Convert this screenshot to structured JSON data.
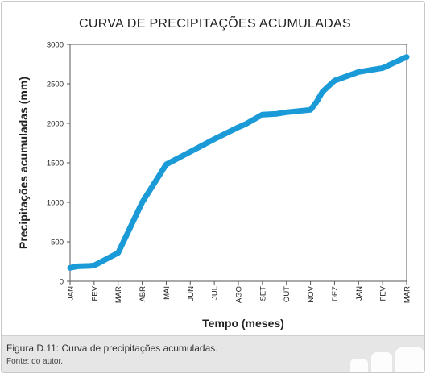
{
  "figure": {
    "caption": "Figura D.11: Curva de precipitações acumuladas.",
    "source": "Fonte: do autor."
  },
  "chart_data": {
    "type": "line",
    "title": "CURVA DE PRECIPITAÇÕES ACUMULADAS",
    "xlabel": "Tempo (meses)",
    "ylabel": "Precipitações acumuladas (mm)",
    "ylim": [
      0,
      3000
    ],
    "yticks": [
      0,
      500,
      1000,
      1500,
      2000,
      2500,
      3000
    ],
    "categories": [
      "JAN",
      "FEV",
      "MAR",
      "ABR",
      "MAI",
      "JUN",
      "JUL",
      "AGO",
      "SET",
      "OUT",
      "NOV",
      "DEZ",
      "JAN",
      "FEV",
      "MAR"
    ],
    "grid": false,
    "legend": "none",
    "line_color": "#1a9bd7",
    "series": [
      {
        "x": [
          0,
          0.3,
          0.8,
          1.0,
          2.0,
          3.0,
          4.0,
          5.0,
          6.0,
          7.0,
          7.3,
          8.0,
          8.6,
          9.0,
          9.5,
          10.0,
          10.25,
          10.5,
          11.0,
          12.0,
          13.0,
          14.0
        ],
        "values": [
          170,
          190,
          195,
          200,
          360,
          1000,
          1480,
          1640,
          1800,
          1950,
          1990,
          2110,
          2120,
          2140,
          2155,
          2170,
          2270,
          2400,
          2540,
          2650,
          2700,
          2840
        ]
      }
    ]
  }
}
